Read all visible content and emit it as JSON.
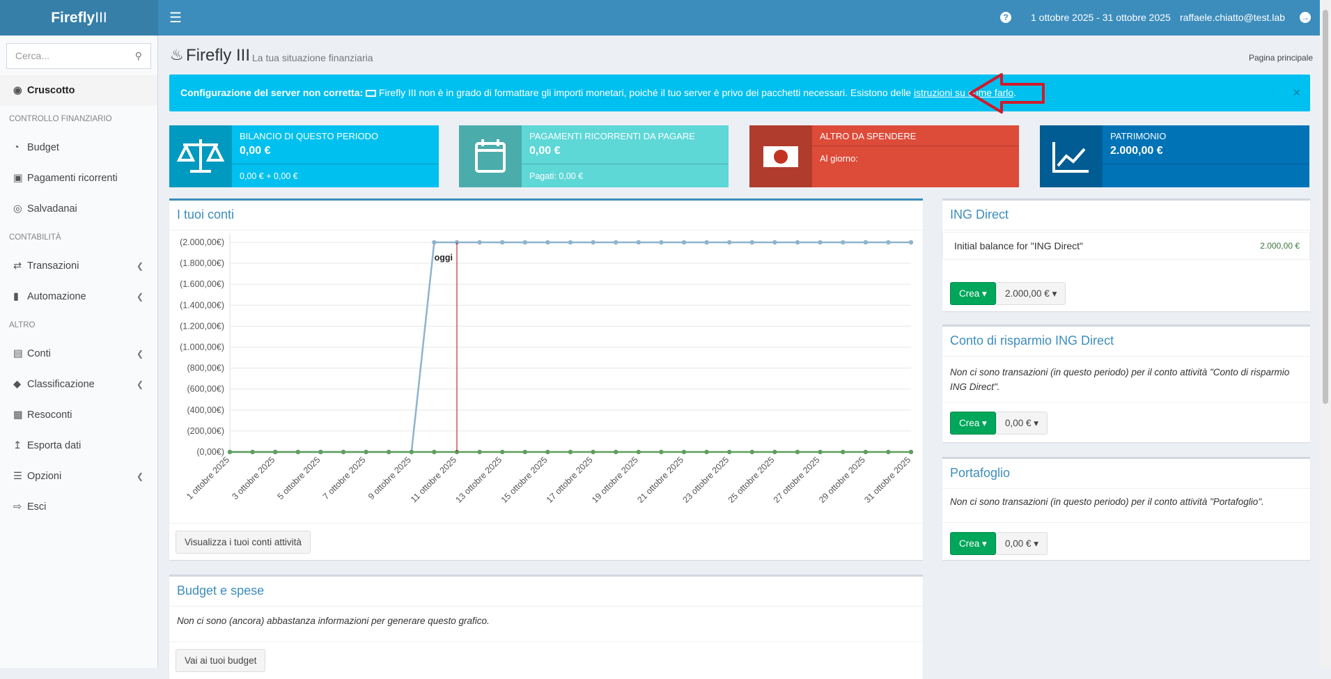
{
  "header": {
    "logo_bold": "Firefly",
    "logo_light": "III",
    "date_range": "1 ottobre 2025 - 31 ottobre 2025",
    "user": "raffaele.chiatto@test.lab"
  },
  "sidebar": {
    "search_placeholder": "Cerca...",
    "items": [
      {
        "label": "Cruscotto"
      },
      {
        "section": "CONTROLLO FINANZIARIO"
      },
      {
        "label": "Budget"
      },
      {
        "label": "Pagamenti ricorrenti"
      },
      {
        "label": "Salvadanai"
      },
      {
        "section": "CONTABILITÀ"
      },
      {
        "label": "Transazioni"
      },
      {
        "label": "Automazione"
      },
      {
        "section": "ALTRO"
      },
      {
        "label": "Conti"
      },
      {
        "label": "Classificazione"
      },
      {
        "label": "Resoconti"
      },
      {
        "label": "Esporta dati"
      },
      {
        "label": "Opzioni"
      },
      {
        "label": "Esci"
      }
    ]
  },
  "page": {
    "title": "Firefly III",
    "subtitle": "La tua situazione finanziaria",
    "breadcrumb": "Pagina principale"
  },
  "alert": {
    "strong": "Configurazione del server non corretta:",
    "text": "Firefly III non è in grado di formattare gli importi monetari, poiché il tuo server è privo dei pacchetti necessari. Esistono delle",
    "link": "istruzioni su come farlo",
    "end": "."
  },
  "info_boxes": [
    {
      "title": "BILANCIO DI QUESTO PERIODO",
      "value": "0,00 €",
      "footer": "0,00 € + 0,00 €"
    },
    {
      "title": "PAGAMENTI RICORRENTI DA PAGARE",
      "value": "0,00 €",
      "footer": "Pagati: 0,00 €"
    },
    {
      "title": "ALTRO DA SPENDERE",
      "subtext": "Al giorno:"
    },
    {
      "title": "PATRIMONIO",
      "value": "2.000,00 €"
    }
  ],
  "accounts_panel": {
    "title": "I tuoi conti",
    "button": "Visualizza i tuoi conti attività"
  },
  "budget_panel": {
    "title": "Budget e spese",
    "text": "Non ci sono (ancora) abbastanza informazioni per generare questo grafico.",
    "button": "Vai ai tuoi budget"
  },
  "account_cards": [
    {
      "title": "ING Direct",
      "row_label": "Initial balance for \"ING Direct\"",
      "row_amount": "2.000,00 €",
      "create": "Crea",
      "balance": "2.000,00 €"
    },
    {
      "title": "Conto di risparmio ING Direct",
      "text": "Non ci sono transazioni (in questo periodo) per il conto attività \"Conto di risparmio ING Direct\".",
      "create": "Crea",
      "balance": "0,00 €"
    },
    {
      "title": "Portafoglio",
      "text": "Non ci sono transazioni (in questo periodo) per il conto attività \"Portafoglio\".",
      "create": "Crea",
      "balance": "0,00 €"
    }
  ],
  "chart_data": {
    "type": "line",
    "categories": [
      "1 ottobre 2025",
      null,
      "3 ottobre 2025",
      null,
      "5 ottobre 2025",
      null,
      "7 ottobre 2025",
      null,
      "9 ottobre 2025",
      null,
      "11 ottobre 2025",
      null,
      "13 ottobre 2025",
      null,
      "15 ottobre 2025",
      null,
      "17 ottobre 2025",
      null,
      "19 ottobre 2025",
      null,
      "21 ottobre 2025",
      null,
      "23 ottobre 2025",
      null,
      "25 ottobre 2025",
      null,
      "27 ottobre 2025",
      null,
      "29 ottobre 2025",
      null,
      "31 ottobre 2025"
    ],
    "series": [
      {
        "color": "#8fb3cc",
        "values": [
          0,
          0,
          0,
          0,
          0,
          0,
          0,
          0,
          0,
          2000,
          2000,
          2000,
          2000,
          2000,
          2000,
          2000,
          2000,
          2000,
          2000,
          2000,
          2000,
          2000,
          2000,
          2000,
          2000,
          2000,
          2000,
          2000,
          2000,
          2000,
          2000
        ]
      },
      {
        "color": "#5e9e5e",
        "values": [
          0,
          0,
          0,
          0,
          0,
          0,
          0,
          0,
          0,
          0,
          0,
          0,
          0,
          0,
          0,
          0,
          0,
          0,
          0,
          0,
          0,
          0,
          0,
          0,
          0,
          0,
          0,
          0,
          0,
          0,
          0
        ]
      }
    ],
    "ylim": [
      0,
      2000
    ],
    "yticks": [
      {
        "value": 0,
        "label": "(0,00€)"
      },
      {
        "value": 200,
        "label": "(200,00€)"
      },
      {
        "value": 400,
        "label": "(400,00€)"
      },
      {
        "value": 600,
        "label": "(600,00€)"
      },
      {
        "value": 800,
        "label": "(800,00€)"
      },
      {
        "value": 1000,
        "label": "(1.000,00€)"
      },
      {
        "value": 1200,
        "label": "(1.200,00€)"
      },
      {
        "value": 1400,
        "label": "(1.400,00€)"
      },
      {
        "value": 1600,
        "label": "(1.600,00€)"
      },
      {
        "value": 1800,
        "label": "(1.800,00€)"
      },
      {
        "value": 2000,
        "label": "(2.000,00€)"
      }
    ],
    "grid": true,
    "annotation": {
      "text": "oggi",
      "x": "11 ottobre 2025",
      "color": "#c00000"
    }
  }
}
